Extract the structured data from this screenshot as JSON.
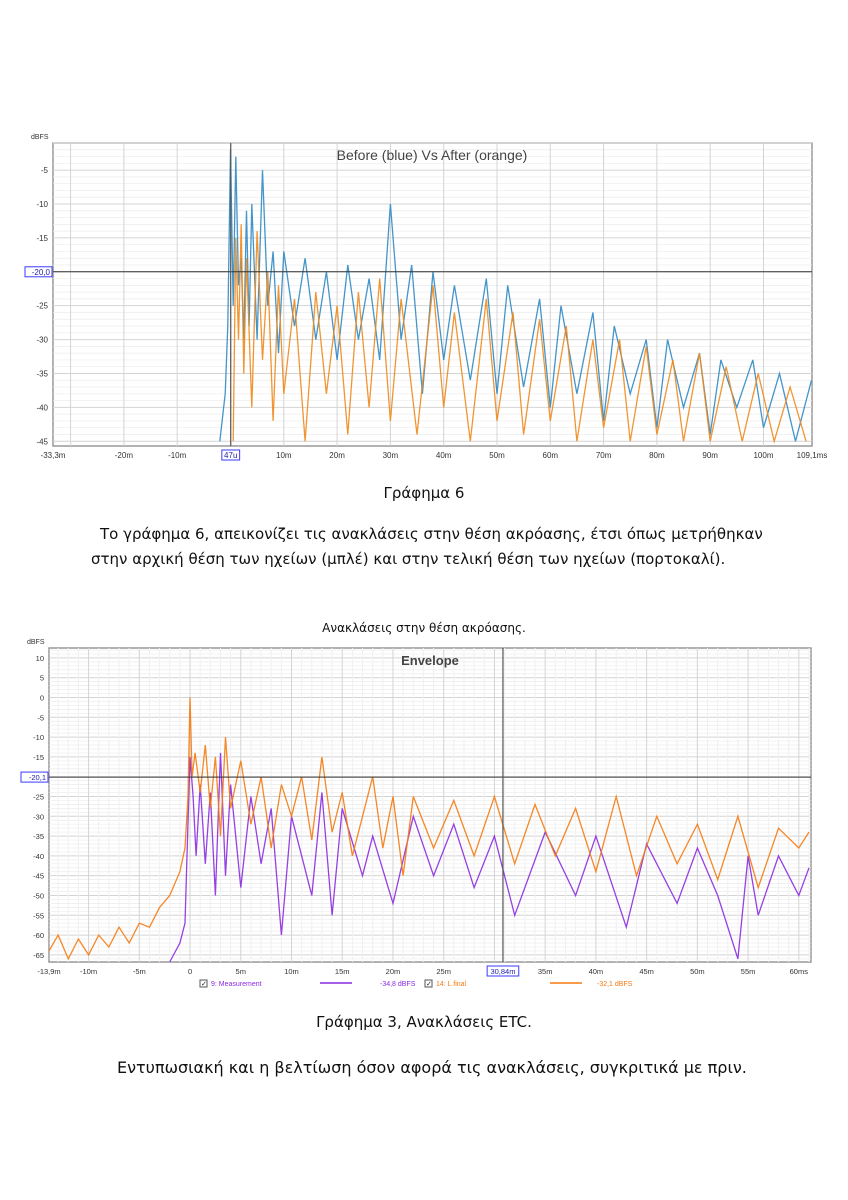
{
  "figure6": {
    "caption": "Γράφημα 6",
    "description_lines": [
      "Το γράφημα 6, απεικονίζει τις ανακλάσεις στην θέση ακρόασης, έτσι όπως μετρήθηκαν",
      "στην αρχική θέση των ηχείων (μπλέ) και στην τελική θέση των ηχείων (πορτοκαλί)."
    ]
  },
  "figure3": {
    "heading": "Ανακλάσεις στην θέση ακρόασης.",
    "caption": "Γράφημα 3, Ανακλάσεις ETC.",
    "conclusion": "Εντυπωσιακή και η βελτίωση όσον αφορά τις ανακλάσεις, συγκριτικά με πριν."
  },
  "chart_data": [
    {
      "type": "line",
      "title": "Before (blue) Vs After (orange)",
      "ylabel": "dBFS",
      "xlim": [
        -33.3,
        109.1
      ],
      "ylim": [
        -45.7,
        -1
      ],
      "grid": true,
      "yticks": [
        {
          "v": -5,
          "l": "-5"
        },
        {
          "v": -10,
          "l": "-10"
        },
        {
          "v": -15,
          "l": "-15"
        },
        {
          "v": -25,
          "l": "-25"
        },
        {
          "v": -30,
          "l": "-30"
        },
        {
          "v": -35,
          "l": "-35"
        },
        {
          "v": -40,
          "l": "-40"
        },
        {
          "v": -45,
          "l": "-45"
        }
      ],
      "xticks": [
        {
          "v": -33.3,
          "l": "-33,3m"
        },
        {
          "v": -20,
          "l": "-20m"
        },
        {
          "v": -10,
          "l": "-10m"
        },
        {
          "v": 10,
          "l": "10m"
        },
        {
          "v": 20,
          "l": "20m"
        },
        {
          "v": 30,
          "l": "30m"
        },
        {
          "v": 40,
          "l": "40m"
        },
        {
          "v": 50,
          "l": "50m"
        },
        {
          "v": 60,
          "l": "60m"
        },
        {
          "v": 70,
          "l": "70m"
        },
        {
          "v": 80,
          "l": "80m"
        },
        {
          "v": 90,
          "l": "90m"
        },
        {
          "v": 100,
          "l": "100m"
        },
        {
          "v": 109.1,
          "l": "109,1ms"
        }
      ],
      "cursor": {
        "x": 0.047,
        "x_label": "47u",
        "y": -20.0,
        "y_label": "-20,0"
      },
      "series": [
        {
          "color": "#2f8ac4",
          "points": [
            [
              -2,
              -45
            ],
            [
              -1,
              -38
            ],
            [
              -0.5,
              -28
            ],
            [
              0,
              -2
            ],
            [
              0.5,
              -25
            ],
            [
              1,
              -3
            ],
            [
              1.5,
              -22
            ],
            [
              2,
              -18
            ],
            [
              2.5,
              -30
            ],
            [
              3,
              -11
            ],
            [
              3.5,
              -28
            ],
            [
              4,
              -10
            ],
            [
              5,
              -30
            ],
            [
              6,
              -5
            ],
            [
              7,
              -25
            ],
            [
              8,
              -17
            ],
            [
              9,
              -32
            ],
            [
              10,
              -17
            ],
            [
              12,
              -28
            ],
            [
              14,
              -18
            ],
            [
              16,
              -30
            ],
            [
              18,
              -20
            ],
            [
              20,
              -33
            ],
            [
              22,
              -19
            ],
            [
              24,
              -30
            ],
            [
              26,
              -21
            ],
            [
              28,
              -33
            ],
            [
              30,
              -10
            ],
            [
              32,
              -30
            ],
            [
              34,
              -19
            ],
            [
              36,
              -38
            ],
            [
              38,
              -20
            ],
            [
              40,
              -33
            ],
            [
              42,
              -22
            ],
            [
              45,
              -36
            ],
            [
              48,
              -21
            ],
            [
              50,
              -38
            ],
            [
              52,
              -22
            ],
            [
              55,
              -37
            ],
            [
              58,
              -24
            ],
            [
              60,
              -40
            ],
            [
              62,
              -25
            ],
            [
              65,
              -38
            ],
            [
              68,
              -26
            ],
            [
              70,
              -42
            ],
            [
              72,
              -28
            ],
            [
              75,
              -38
            ],
            [
              78,
              -30
            ],
            [
              80,
              -43
            ],
            [
              82,
              -30
            ],
            [
              85,
              -40
            ],
            [
              88,
              -32
            ],
            [
              90,
              -44
            ],
            [
              92,
              -33
            ],
            [
              95,
              -40
            ],
            [
              98,
              -33
            ],
            [
              100,
              -43
            ],
            [
              103,
              -35
            ],
            [
              106,
              -45
            ],
            [
              109,
              -36
            ]
          ]
        },
        {
          "color": "#f08a1c",
          "points": [
            [
              0.5,
              -45
            ],
            [
              1,
              -15
            ],
            [
              1.5,
              -30
            ],
            [
              2,
              -13
            ],
            [
              2.5,
              -35
            ],
            [
              3,
              -18
            ],
            [
              4,
              -40
            ],
            [
              5,
              -14
            ],
            [
              6,
              -33
            ],
            [
              7,
              -20
            ],
            [
              8,
              -42
            ],
            [
              9,
              -22
            ],
            [
              10,
              -38
            ],
            [
              12,
              -24
            ],
            [
              14,
              -45
            ],
            [
              16,
              -23
            ],
            [
              18,
              -38
            ],
            [
              20,
              -25
            ],
            [
              22,
              -44
            ],
            [
              24,
              -23
            ],
            [
              26,
              -40
            ],
            [
              28,
              -21
            ],
            [
              30,
              -42
            ],
            [
              32,
              -24
            ],
            [
              35,
              -44
            ],
            [
              38,
              -22
            ],
            [
              40,
              -40
            ],
            [
              42,
              -26
            ],
            [
              45,
              -45
            ],
            [
              48,
              -24
            ],
            [
              50,
              -42
            ],
            [
              53,
              -26
            ],
            [
              55,
              -44
            ],
            [
              58,
              -27
            ],
            [
              60,
              -42
            ],
            [
              63,
              -28
            ],
            [
              65,
              -45
            ],
            [
              68,
              -30
            ],
            [
              70,
              -43
            ],
            [
              73,
              -30
            ],
            [
              75,
              -45
            ],
            [
              78,
              -31
            ],
            [
              80,
              -44
            ],
            [
              83,
              -33
            ],
            [
              85,
              -45
            ],
            [
              88,
              -32
            ],
            [
              90,
              -45
            ],
            [
              93,
              -34
            ],
            [
              96,
              -45
            ],
            [
              99,
              -35
            ],
            [
              102,
              -45
            ],
            [
              105,
              -37
            ],
            [
              108,
              -45
            ]
          ]
        }
      ]
    },
    {
      "type": "line",
      "title": "Envelope",
      "ylabel": "dBFS",
      "xlim": [
        -13.9,
        61.2
      ],
      "ylim": [
        -66.8,
        12.5
      ],
      "grid": true,
      "yticks": [
        {
          "v": 10,
          "l": "10"
        },
        {
          "v": 5,
          "l": "5"
        },
        {
          "v": 0,
          "l": "0"
        },
        {
          "v": -5,
          "l": "-5"
        },
        {
          "v": -10,
          "l": "-10"
        },
        {
          "v": -15,
          "l": "-15"
        },
        {
          "v": -25,
          "l": "-25"
        },
        {
          "v": -30,
          "l": "-30"
        },
        {
          "v": -35,
          "l": "-35"
        },
        {
          "v": -40,
          "l": "-40"
        },
        {
          "v": -45,
          "l": "-45"
        },
        {
          "v": -50,
          "l": "-50"
        },
        {
          "v": -55,
          "l": "-55"
        },
        {
          "v": -60,
          "l": "-60"
        },
        {
          "v": -65,
          "l": "-65"
        }
      ],
      "xticks": [
        {
          "v": -13.9,
          "l": "-13,9m"
        },
        {
          "v": -10,
          "l": "-10m"
        },
        {
          "v": -5,
          "l": "-5m"
        },
        {
          "v": 0,
          "l": "0"
        },
        {
          "v": 5,
          "l": "5m"
        },
        {
          "v": 10,
          "l": "10m"
        },
        {
          "v": 15,
          "l": "15m"
        },
        {
          "v": 20,
          "l": "20m"
        },
        {
          "v": 25,
          "l": "25m"
        },
        {
          "v": 35,
          "l": "35m"
        },
        {
          "v": 40,
          "l": "40m"
        },
        {
          "v": 45,
          "l": "45m"
        },
        {
          "v": 50,
          "l": "50m"
        },
        {
          "v": 55,
          "l": "55m"
        },
        {
          "v": 60,
          "l": "60ms"
        }
      ],
      "cursor": {
        "x": 30.84,
        "x_label": "30,84m",
        "y": -20.1,
        "y_label": "-20,1"
      },
      "legend": [
        {
          "label": "9: Measurement",
          "value": "-34,8 dBFS",
          "color": "#8b2be2",
          "checked": true
        },
        {
          "label": "14: L final",
          "value": "-32,1 dBFS",
          "color": "#f57a10",
          "checked": true
        }
      ],
      "series": [
        {
          "name": "9: Measurement",
          "color": "#8b2be2",
          "points": [
            [
              -2,
              -67
            ],
            [
              -1,
              -62
            ],
            [
              -0.5,
              -57
            ],
            [
              -0.3,
              -40
            ],
            [
              0,
              -15
            ],
            [
              0.3,
              -25
            ],
            [
              0.6,
              -40
            ],
            [
              1,
              -22
            ],
            [
              1.5,
              -42
            ],
            [
              2,
              -24
            ],
            [
              2.5,
              -50
            ],
            [
              3,
              -14
            ],
            [
              3.5,
              -45
            ],
            [
              4,
              -22
            ],
            [
              5,
              -48
            ],
            [
              6,
              -25
            ],
            [
              7,
              -42
            ],
            [
              8,
              -28
            ],
            [
              9,
              -60
            ],
            [
              10,
              -30
            ],
            [
              12,
              -50
            ],
            [
              13,
              -24
            ],
            [
              14,
              -55
            ],
            [
              15,
              -28
            ],
            [
              17,
              -45
            ],
            [
              18,
              -35
            ],
            [
              20,
              -52
            ],
            [
              22,
              -30
            ],
            [
              24,
              -45
            ],
            [
              26,
              -32
            ],
            [
              28,
              -48
            ],
            [
              30,
              -35
            ],
            [
              32,
              -55
            ],
            [
              35,
              -34
            ],
            [
              38,
              -50
            ],
            [
              40,
              -35
            ],
            [
              43,
              -58
            ],
            [
              45,
              -37
            ],
            [
              48,
              -52
            ],
            [
              50,
              -38
            ],
            [
              52,
              -50
            ],
            [
              54,
              -66
            ],
            [
              55,
              -40
            ],
            [
              56,
              -55
            ],
            [
              58,
              -40
            ],
            [
              60,
              -50
            ],
            [
              61,
              -43
            ]
          ]
        },
        {
          "name": "14: L final",
          "color": "#f57a10",
          "points": [
            [
              -13.9,
              -64
            ],
            [
              -13,
              -60
            ],
            [
              -12,
              -66
            ],
            [
              -11,
              -61
            ],
            [
              -10,
              -65
            ],
            [
              -9,
              -60
            ],
            [
              -8,
              -63
            ],
            [
              -7,
              -58
            ],
            [
              -6,
              -62
            ],
            [
              -5,
              -57
            ],
            [
              -4,
              -58
            ],
            [
              -3,
              -53
            ],
            [
              -2,
              -50
            ],
            [
              -1,
              -44
            ],
            [
              -0.5,
              -38
            ],
            [
              -0.2,
              -25
            ],
            [
              0,
              0
            ],
            [
              0.2,
              -20
            ],
            [
              0.5,
              -14
            ],
            [
              1,
              -24
            ],
            [
              1.5,
              -12
            ],
            [
              2,
              -28
            ],
            [
              2.5,
              -15
            ],
            [
              3,
              -35
            ],
            [
              3.5,
              -10
            ],
            [
              4,
              -28
            ],
            [
              5,
              -16
            ],
            [
              6,
              -32
            ],
            [
              7,
              -20
            ],
            [
              8,
              -38
            ],
            [
              9,
              -22
            ],
            [
              10,
              -30
            ],
            [
              11,
              -20
            ],
            [
              12,
              -36
            ],
            [
              13,
              -15
            ],
            [
              14,
              -34
            ],
            [
              15,
              -24
            ],
            [
              16,
              -40
            ],
            [
              18,
              -20
            ],
            [
              19,
              -38
            ],
            [
              20,
              -25
            ],
            [
              21,
              -45
            ],
            [
              22,
              -25
            ],
            [
              24,
              -38
            ],
            [
              26,
              -26
            ],
            [
              28,
              -40
            ],
            [
              30,
              -25
            ],
            [
              32,
              -42
            ],
            [
              34,
              -27
            ],
            [
              36,
              -40
            ],
            [
              38,
              -28
            ],
            [
              40,
              -44
            ],
            [
              42,
              -25
            ],
            [
              44,
              -45
            ],
            [
              46,
              -30
            ],
            [
              48,
              -42
            ],
            [
              50,
              -32
            ],
            [
              52,
              -46
            ],
            [
              54,
              -30
            ],
            [
              56,
              -48
            ],
            [
              58,
              -33
            ],
            [
              60,
              -38
            ],
            [
              61,
              -34
            ]
          ]
        }
      ]
    }
  ]
}
